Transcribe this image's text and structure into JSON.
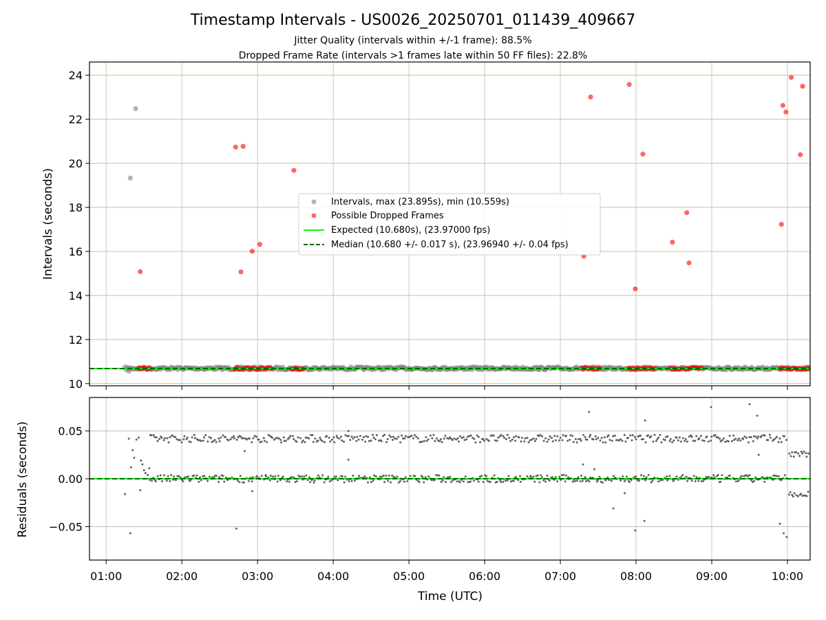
{
  "chart_data": [
    {
      "type": "scatter",
      "title": "Timestamp Intervals - US0026_20250701_011439_409667",
      "subtitle_lines": [
        "Jitter Quality (intervals within +/-1 frame): 88.5%",
        "Dropped Frame Rate (intervals >1 frames late within 50 FF files): 22.8%"
      ],
      "ylabel": "Intervals (seconds)",
      "ylim": [
        9.9,
        24.6
      ],
      "yticks": [
        10,
        12,
        14,
        16,
        18,
        20,
        22,
        24
      ],
      "ytick_labels": [
        "10",
        "12",
        "14",
        "16",
        "18",
        "20",
        "22",
        "24"
      ],
      "xlim": [
        0.78,
        10.3
      ],
      "grid": true,
      "legend_position": "center",
      "series": [
        {
          "name": "Intervals, max (23.895s), min (10.559s)",
          "color": "#808080",
          "band": {
            "x_start": 1.25,
            "x_end": 10.3,
            "y": 10.69
          },
          "points": [
            {
              "x": 1.32,
              "y": 19.33
            },
            {
              "x": 1.39,
              "y": 22.48
            },
            {
              "x": 1.3,
              "y": 10.56
            }
          ]
        },
        {
          "name": "Possible Dropped Frames",
          "color": "#ff0000",
          "points": [
            {
              "x": 1.45,
              "y": 15.08
            },
            {
              "x": 2.71,
              "y": 20.74
            },
            {
              "x": 2.81,
              "y": 20.77
            },
            {
              "x": 2.78,
              "y": 15.07
            },
            {
              "x": 2.93,
              "y": 16.01
            },
            {
              "x": 3.03,
              "y": 16.32
            },
            {
              "x": 3.48,
              "y": 19.68
            },
            {
              "x": 7.31,
              "y": 15.78
            },
            {
              "x": 7.4,
              "y": 23.01
            },
            {
              "x": 7.91,
              "y": 23.58
            },
            {
              "x": 7.99,
              "y": 14.3
            },
            {
              "x": 8.09,
              "y": 20.42
            },
            {
              "x": 8.48,
              "y": 16.42
            },
            {
              "x": 8.67,
              "y": 17.76
            },
            {
              "x": 8.7,
              "y": 15.48
            },
            {
              "x": 9.92,
              "y": 17.23
            },
            {
              "x": 9.94,
              "y": 22.63
            },
            {
              "x": 9.98,
              "y": 22.33
            },
            {
              "x": 10.05,
              "y": 23.9
            },
            {
              "x": 10.17,
              "y": 20.39
            },
            {
              "x": 10.2,
              "y": 23.5
            }
          ],
          "clusters_near_expected": [
            {
              "x_start": 1.43,
              "x_end": 1.6,
              "y": 10.68
            },
            {
              "x_start": 2.7,
              "x_end": 3.2,
              "y": 10.68
            },
            {
              "x_start": 3.45,
              "x_end": 3.62,
              "y": 10.68
            },
            {
              "x_start": 7.28,
              "x_end": 7.53,
              "y": 10.68
            },
            {
              "x_start": 7.9,
              "x_end": 8.25,
              "y": 10.68
            },
            {
              "x_start": 8.45,
              "x_end": 8.62,
              "y": 10.68
            },
            {
              "x_start": 8.65,
              "x_end": 8.88,
              "y": 10.68
            },
            {
              "x_start": 9.9,
              "x_end": 10.3,
              "y": 10.68
            }
          ]
        },
        {
          "name": "Expected (10.680s), (23.97000 fps)",
          "type": "line",
          "style": "solid",
          "color": "#00ff00",
          "y": 10.68
        },
        {
          "name": "Median (10.680 +/- 0.017 s), (23.96940 +/- 0.04 fps)",
          "type": "line",
          "style": "dashed",
          "color": "#006400",
          "y": 10.68
        }
      ]
    },
    {
      "type": "scatter",
      "xlabel": "Time (UTC)",
      "ylabel": "Residuals (seconds)",
      "ylim": [
        -0.085,
        0.085
      ],
      "yticks": [
        -0.05,
        0.0,
        0.05
      ],
      "ytick_labels": [
        "−0.05",
        "0.00",
        "0.05"
      ],
      "xlim": [
        0.78,
        10.3
      ],
      "xticks": [
        1,
        2,
        3,
        4,
        5,
        6,
        7,
        8,
        9,
        10
      ],
      "xtick_labels": [
        "01:00",
        "02:00",
        "03:00",
        "04:00",
        "05:00",
        "06:00",
        "07:00",
        "08:00",
        "09:00",
        "10:00"
      ],
      "grid": true,
      "series": [
        {
          "color": "#606060",
          "bands": [
            {
              "x_start": 1.58,
              "x_end": 10.0,
              "y_center": 0.042,
              "spread": 0.004
            },
            {
              "x_start": 1.58,
              "x_end": 10.0,
              "y_center": 0.0,
              "spread": 0.004
            },
            {
              "x_start": 10.02,
              "x_end": 10.3,
              "y_center": 0.026,
              "spread": 0.003
            },
            {
              "x_start": 10.02,
              "x_end": 10.3,
              "y_center": -0.016,
              "spread": 0.003
            }
          ],
          "points": [
            {
              "x": 1.25,
              "y": -0.016
            },
            {
              "x": 1.32,
              "y": -0.057
            },
            {
              "x": 1.3,
              "y": 0.042
            },
            {
              "x": 1.33,
              "y": 0.012
            },
            {
              "x": 1.35,
              "y": 0.03
            },
            {
              "x": 1.37,
              "y": 0.022
            },
            {
              "x": 1.4,
              "y": 0.041
            },
            {
              "x": 1.43,
              "y": 0.043
            },
            {
              "x": 1.45,
              "y": -0.012
            },
            {
              "x": 1.46,
              "y": 0.019
            },
            {
              "x": 1.48,
              "y": 0.015
            },
            {
              "x": 1.5,
              "y": 0.009
            },
            {
              "x": 1.52,
              "y": 0.006
            },
            {
              "x": 1.55,
              "y": 0.004
            },
            {
              "x": 1.57,
              "y": 0.011
            },
            {
              "x": 2.72,
              "y": -0.052
            },
            {
              "x": 2.83,
              "y": 0.029
            },
            {
              "x": 2.93,
              "y": -0.013
            },
            {
              "x": 4.2,
              "y": 0.02
            },
            {
              "x": 4.2,
              "y": 0.05
            },
            {
              "x": 7.3,
              "y": 0.015
            },
            {
              "x": 7.38,
              "y": 0.07
            },
            {
              "x": 7.45,
              "y": 0.01
            },
            {
              "x": 7.7,
              "y": -0.031
            },
            {
              "x": 7.85,
              "y": -0.015
            },
            {
              "x": 7.99,
              "y": -0.054
            },
            {
              "x": 8.11,
              "y": -0.044
            },
            {
              "x": 8.12,
              "y": 0.061
            },
            {
              "x": 8.99,
              "y": 0.075
            },
            {
              "x": 9.5,
              "y": 0.078
            },
            {
              "x": 9.6,
              "y": 0.066
            },
            {
              "x": 9.62,
              "y": 0.025
            },
            {
              "x": 9.9,
              "y": -0.047
            },
            {
              "x": 9.95,
              "y": -0.057
            },
            {
              "x": 9.99,
              "y": -0.061
            }
          ]
        },
        {
          "type": "line",
          "style": "solid",
          "color": "#00ff00",
          "y": 0.0
        },
        {
          "type": "line",
          "style": "dashed",
          "color": "#006400",
          "y": 0.0
        }
      ]
    }
  ]
}
